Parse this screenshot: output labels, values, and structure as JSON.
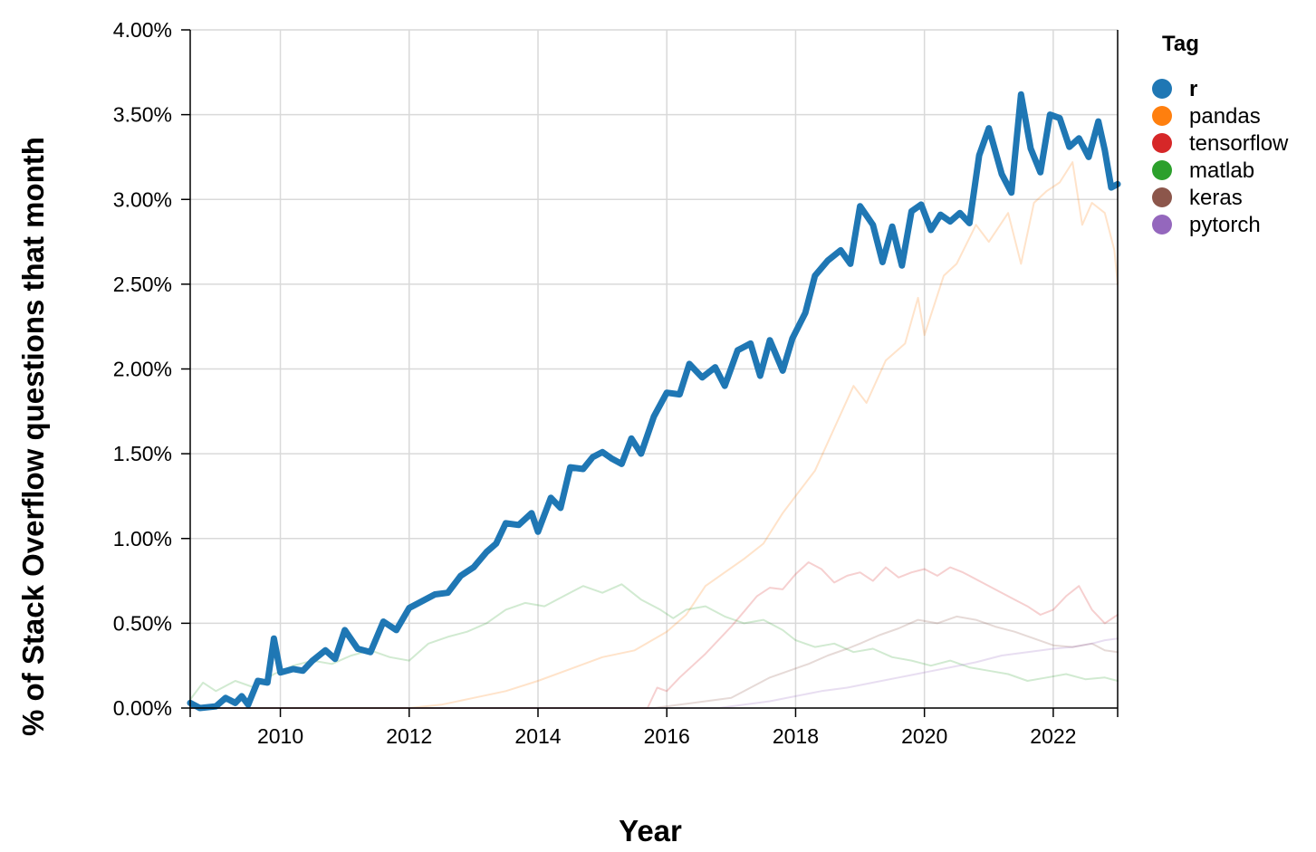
{
  "chart_data": {
    "type": "line",
    "xlabel": "Year",
    "ylabel": "% of Stack Overflow questions that month",
    "x_range": [
      2008.6,
      2023.0
    ],
    "ylim": [
      0,
      0.04
    ],
    "x_ticks": [
      2010,
      2012,
      2014,
      2016,
      2018,
      2020,
      2022
    ],
    "x_tick_labels": [
      "2010",
      "2012",
      "2014",
      "2016",
      "2018",
      "2020",
      "2022"
    ],
    "y_ticks": [
      0,
      0.005,
      0.01,
      0.015,
      0.02,
      0.025,
      0.03,
      0.035,
      0.04
    ],
    "y_tick_labels": [
      "0.00%",
      "0.50%",
      "1.00%",
      "1.50%",
      "2.00%",
      "2.50%",
      "3.00%",
      "3.50%",
      "4.00%"
    ],
    "grid": true,
    "legend": {
      "title": "Tag",
      "placement": "right",
      "highlighted": "r"
    },
    "series": [
      {
        "name": "r",
        "color": "#1f77b4",
        "highlighted": true,
        "points": [
          [
            2008.6,
            0.0003
          ],
          [
            2008.75,
            0.0
          ],
          [
            2009.0,
            0.0001
          ],
          [
            2009.15,
            0.0006
          ],
          [
            2009.3,
            0.0003
          ],
          [
            2009.4,
            0.0007
          ],
          [
            2009.5,
            0.0002
          ],
          [
            2009.65,
            0.0016
          ],
          [
            2009.8,
            0.0015
          ],
          [
            2009.9,
            0.0041
          ],
          [
            2010.0,
            0.0021
          ],
          [
            2010.2,
            0.0023
          ],
          [
            2010.35,
            0.0022
          ],
          [
            2010.5,
            0.0028
          ],
          [
            2010.7,
            0.0034
          ],
          [
            2010.85,
            0.0029
          ],
          [
            2011.0,
            0.0046
          ],
          [
            2011.2,
            0.0035
          ],
          [
            2011.4,
            0.0033
          ],
          [
            2011.6,
            0.0051
          ],
          [
            2011.8,
            0.0046
          ],
          [
            2012.0,
            0.0059
          ],
          [
            2012.2,
            0.0063
          ],
          [
            2012.4,
            0.0067
          ],
          [
            2012.6,
            0.0068
          ],
          [
            2012.8,
            0.0078
          ],
          [
            2013.0,
            0.0083
          ],
          [
            2013.2,
            0.0092
          ],
          [
            2013.35,
            0.0097
          ],
          [
            2013.5,
            0.0109
          ],
          [
            2013.7,
            0.0108
          ],
          [
            2013.9,
            0.0115
          ],
          [
            2014.0,
            0.0104
          ],
          [
            2014.2,
            0.0124
          ],
          [
            2014.35,
            0.0118
          ],
          [
            2014.5,
            0.0142
          ],
          [
            2014.7,
            0.0141
          ],
          [
            2014.85,
            0.0148
          ],
          [
            2015.0,
            0.0151
          ],
          [
            2015.15,
            0.0147
          ],
          [
            2015.3,
            0.0144
          ],
          [
            2015.45,
            0.0159
          ],
          [
            2015.6,
            0.015
          ],
          [
            2015.8,
            0.0172
          ],
          [
            2016.0,
            0.0186
          ],
          [
            2016.2,
            0.0185
          ],
          [
            2016.35,
            0.0203
          ],
          [
            2016.55,
            0.0195
          ],
          [
            2016.75,
            0.0201
          ],
          [
            2016.9,
            0.019
          ],
          [
            2017.1,
            0.0211
          ],
          [
            2017.3,
            0.0215
          ],
          [
            2017.45,
            0.0196
          ],
          [
            2017.6,
            0.0217
          ],
          [
            2017.8,
            0.0199
          ],
          [
            2017.95,
            0.0218
          ],
          [
            2018.15,
            0.0233
          ],
          [
            2018.3,
            0.0255
          ],
          [
            2018.5,
            0.0264
          ],
          [
            2018.7,
            0.027
          ],
          [
            2018.85,
            0.0262
          ],
          [
            2019.0,
            0.0296
          ],
          [
            2019.2,
            0.0285
          ],
          [
            2019.35,
            0.0263
          ],
          [
            2019.5,
            0.0284
          ],
          [
            2019.65,
            0.0261
          ],
          [
            2019.8,
            0.0293
          ],
          [
            2019.95,
            0.0297
          ],
          [
            2020.1,
            0.0282
          ],
          [
            2020.25,
            0.0291
          ],
          [
            2020.4,
            0.0287
          ],
          [
            2020.55,
            0.0292
          ],
          [
            2020.7,
            0.0286
          ],
          [
            2020.85,
            0.0326
          ],
          [
            2021.0,
            0.0342
          ],
          [
            2021.2,
            0.0315
          ],
          [
            2021.35,
            0.0304
          ],
          [
            2021.5,
            0.0362
          ],
          [
            2021.65,
            0.033
          ],
          [
            2021.8,
            0.0316
          ],
          [
            2021.95,
            0.035
          ],
          [
            2022.1,
            0.0348
          ],
          [
            2022.25,
            0.0331
          ],
          [
            2022.4,
            0.0336
          ],
          [
            2022.55,
            0.0325
          ],
          [
            2022.7,
            0.0346
          ],
          [
            2022.8,
            0.0329
          ],
          [
            2022.9,
            0.0307
          ],
          [
            2023.0,
            0.0309
          ]
        ]
      },
      {
        "name": "pandas",
        "color": "#ff7f0e",
        "highlighted": false,
        "points": [
          [
            2008.6,
            0.0
          ],
          [
            2012.0,
            0.0
          ],
          [
            2012.5,
            0.0002
          ],
          [
            2013.0,
            0.0006
          ],
          [
            2013.5,
            0.001
          ],
          [
            2014.0,
            0.0016
          ],
          [
            2014.5,
            0.0023
          ],
          [
            2015.0,
            0.003
          ],
          [
            2015.5,
            0.0034
          ],
          [
            2016.0,
            0.0045
          ],
          [
            2016.3,
            0.0055
          ],
          [
            2016.6,
            0.0072
          ],
          [
            2016.9,
            0.008
          ],
          [
            2017.2,
            0.0088
          ],
          [
            2017.5,
            0.0097
          ],
          [
            2017.8,
            0.0115
          ],
          [
            2018.0,
            0.0125
          ],
          [
            2018.3,
            0.014
          ],
          [
            2018.6,
            0.0165
          ],
          [
            2018.9,
            0.019
          ],
          [
            2019.1,
            0.018
          ],
          [
            2019.4,
            0.0205
          ],
          [
            2019.7,
            0.0215
          ],
          [
            2019.9,
            0.0242
          ],
          [
            2020.0,
            0.022
          ],
          [
            2020.3,
            0.0255
          ],
          [
            2020.5,
            0.0262
          ],
          [
            2020.8,
            0.0285
          ],
          [
            2021.0,
            0.0275
          ],
          [
            2021.3,
            0.0292
          ],
          [
            2021.5,
            0.0262
          ],
          [
            2021.7,
            0.0298
          ],
          [
            2021.9,
            0.0305
          ],
          [
            2022.1,
            0.031
          ],
          [
            2022.3,
            0.0322
          ],
          [
            2022.45,
            0.0285
          ],
          [
            2022.6,
            0.0298
          ],
          [
            2022.8,
            0.0292
          ],
          [
            2022.95,
            0.027
          ],
          [
            2023.0,
            0.025
          ]
        ]
      },
      {
        "name": "tensorflow",
        "color": "#d62728",
        "highlighted": false,
        "points": [
          [
            2008.6,
            0.0
          ],
          [
            2015.7,
            0.0
          ],
          [
            2015.85,
            0.0012
          ],
          [
            2016.0,
            0.001
          ],
          [
            2016.2,
            0.0018
          ],
          [
            2016.4,
            0.0025
          ],
          [
            2016.6,
            0.0032
          ],
          [
            2016.8,
            0.004
          ],
          [
            2017.0,
            0.0048
          ],
          [
            2017.2,
            0.0057
          ],
          [
            2017.4,
            0.0066
          ],
          [
            2017.6,
            0.0071
          ],
          [
            2017.8,
            0.007
          ],
          [
            2018.0,
            0.0079
          ],
          [
            2018.2,
            0.0086
          ],
          [
            2018.4,
            0.0082
          ],
          [
            2018.6,
            0.0074
          ],
          [
            2018.8,
            0.0078
          ],
          [
            2019.0,
            0.008
          ],
          [
            2019.2,
            0.0075
          ],
          [
            2019.4,
            0.0083
          ],
          [
            2019.6,
            0.0077
          ],
          [
            2019.8,
            0.008
          ],
          [
            2020.0,
            0.0082
          ],
          [
            2020.2,
            0.0078
          ],
          [
            2020.4,
            0.0083
          ],
          [
            2020.6,
            0.008
          ],
          [
            2020.8,
            0.0076
          ],
          [
            2021.0,
            0.0072
          ],
          [
            2021.2,
            0.0068
          ],
          [
            2021.4,
            0.0064
          ],
          [
            2021.6,
            0.006
          ],
          [
            2021.8,
            0.0055
          ],
          [
            2022.0,
            0.0058
          ],
          [
            2022.2,
            0.0066
          ],
          [
            2022.4,
            0.0072
          ],
          [
            2022.6,
            0.0058
          ],
          [
            2022.8,
            0.005
          ],
          [
            2023.0,
            0.0055
          ]
        ]
      },
      {
        "name": "matlab",
        "color": "#2ca02c",
        "highlighted": false,
        "points": [
          [
            2008.6,
            0.0005
          ],
          [
            2008.8,
            0.0015
          ],
          [
            2009.0,
            0.001
          ],
          [
            2009.3,
            0.0016
          ],
          [
            2009.6,
            0.0012
          ],
          [
            2009.9,
            0.002
          ],
          [
            2010.2,
            0.0025
          ],
          [
            2010.5,
            0.0028
          ],
          [
            2010.8,
            0.0026
          ],
          [
            2011.1,
            0.0031
          ],
          [
            2011.4,
            0.0034
          ],
          [
            2011.7,
            0.003
          ],
          [
            2012.0,
            0.0028
          ],
          [
            2012.3,
            0.0038
          ],
          [
            2012.6,
            0.0042
          ],
          [
            2012.9,
            0.0045
          ],
          [
            2013.2,
            0.005
          ],
          [
            2013.5,
            0.0058
          ],
          [
            2013.8,
            0.0062
          ],
          [
            2014.1,
            0.006
          ],
          [
            2014.4,
            0.0066
          ],
          [
            2014.7,
            0.0072
          ],
          [
            2015.0,
            0.0068
          ],
          [
            2015.3,
            0.0073
          ],
          [
            2015.6,
            0.0064
          ],
          [
            2015.9,
            0.0058
          ],
          [
            2016.1,
            0.0053
          ],
          [
            2016.3,
            0.0058
          ],
          [
            2016.6,
            0.006
          ],
          [
            2016.9,
            0.0054
          ],
          [
            2017.2,
            0.005
          ],
          [
            2017.5,
            0.0052
          ],
          [
            2017.8,
            0.0046
          ],
          [
            2018.0,
            0.004
          ],
          [
            2018.3,
            0.0036
          ],
          [
            2018.6,
            0.0038
          ],
          [
            2018.9,
            0.0033
          ],
          [
            2019.2,
            0.0035
          ],
          [
            2019.5,
            0.003
          ],
          [
            2019.8,
            0.0028
          ],
          [
            2020.1,
            0.0025
          ],
          [
            2020.4,
            0.0028
          ],
          [
            2020.7,
            0.0024
          ],
          [
            2021.0,
            0.0022
          ],
          [
            2021.3,
            0.002
          ],
          [
            2021.6,
            0.0016
          ],
          [
            2021.9,
            0.0018
          ],
          [
            2022.2,
            0.002
          ],
          [
            2022.5,
            0.0017
          ],
          [
            2022.8,
            0.0018
          ],
          [
            2023.0,
            0.0016
          ]
        ]
      },
      {
        "name": "keras",
        "color": "#8c564b",
        "highlighted": false,
        "points": [
          [
            2008.6,
            0.0
          ],
          [
            2015.8,
            0.0
          ],
          [
            2016.2,
            0.0002
          ],
          [
            2016.6,
            0.0004
          ],
          [
            2017.0,
            0.0006
          ],
          [
            2017.3,
            0.0012
          ],
          [
            2017.6,
            0.0018
          ],
          [
            2017.9,
            0.0022
          ],
          [
            2018.2,
            0.0026
          ],
          [
            2018.5,
            0.0031
          ],
          [
            2018.8,
            0.0035
          ],
          [
            2019.0,
            0.0038
          ],
          [
            2019.3,
            0.0043
          ],
          [
            2019.6,
            0.0047
          ],
          [
            2019.9,
            0.0052
          ],
          [
            2020.2,
            0.005
          ],
          [
            2020.5,
            0.0054
          ],
          [
            2020.8,
            0.0052
          ],
          [
            2021.1,
            0.0048
          ],
          [
            2021.4,
            0.0045
          ],
          [
            2021.7,
            0.0041
          ],
          [
            2022.0,
            0.0037
          ],
          [
            2022.3,
            0.0036
          ],
          [
            2022.6,
            0.0038
          ],
          [
            2022.8,
            0.0034
          ],
          [
            2023.0,
            0.0033
          ]
        ]
      },
      {
        "name": "pytorch",
        "color": "#9467bd",
        "highlighted": false,
        "points": [
          [
            2008.6,
            0.0
          ],
          [
            2016.8,
            0.0
          ],
          [
            2017.2,
            0.0002
          ],
          [
            2017.6,
            0.0004
          ],
          [
            2018.0,
            0.0007
          ],
          [
            2018.4,
            0.001
          ],
          [
            2018.8,
            0.0012
          ],
          [
            2019.2,
            0.0015
          ],
          [
            2019.6,
            0.0018
          ],
          [
            2020.0,
            0.0021
          ],
          [
            2020.4,
            0.0024
          ],
          [
            2020.8,
            0.0027
          ],
          [
            2021.2,
            0.0031
          ],
          [
            2021.6,
            0.0033
          ],
          [
            2022.0,
            0.0035
          ],
          [
            2022.3,
            0.0036
          ],
          [
            2022.6,
            0.0038
          ],
          [
            2022.8,
            0.004
          ],
          [
            2023.0,
            0.0041
          ]
        ]
      }
    ]
  }
}
